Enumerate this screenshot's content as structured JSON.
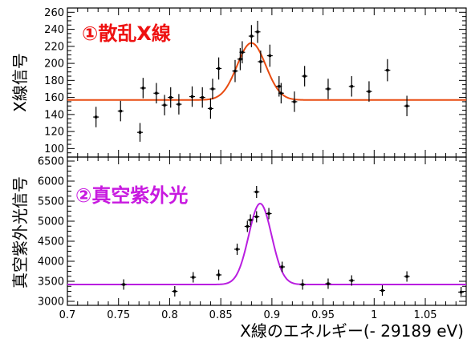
{
  "chart_data": [
    {
      "type": "scatter",
      "title": "①散乱X線",
      "title_color": "#ee1111",
      "xlabel": "",
      "ylabel": "X線信号",
      "xlim": [
        0.7,
        1.09
      ],
      "ylim": [
        90,
        265
      ],
      "yticks": [
        100,
        120,
        140,
        160,
        180,
        200,
        220,
        240,
        260
      ],
      "fit_color": "#e84b10",
      "fit": {
        "baseline": 157,
        "amplitude": 67,
        "center": 0.88,
        "sigma": 0.014
      },
      "points": [
        {
          "x": 0.728,
          "y": 137,
          "yerr": 12
        },
        {
          "x": 0.752,
          "y": 144,
          "yerr": 12
        },
        {
          "x": 0.771,
          "y": 119,
          "yerr": 11
        },
        {
          "x": 0.774,
          "y": 171,
          "yerr": 12
        },
        {
          "x": 0.787,
          "y": 165,
          "yerr": 12
        },
        {
          "x": 0.795,
          "y": 151,
          "yerr": 12
        },
        {
          "x": 0.801,
          "y": 160,
          "yerr": 12
        },
        {
          "x": 0.809,
          "y": 152,
          "yerr": 12
        },
        {
          "x": 0.822,
          "y": 161,
          "yerr": 12
        },
        {
          "x": 0.832,
          "y": 160,
          "yerr": 12
        },
        {
          "x": 0.84,
          "y": 147,
          "yerr": 12
        },
        {
          "x": 0.842,
          "y": 170,
          "yerr": 12
        },
        {
          "x": 0.848,
          "y": 194,
          "yerr": 13
        },
        {
          "x": 0.864,
          "y": 191,
          "yerr": 13
        },
        {
          "x": 0.869,
          "y": 205,
          "yerr": 13
        },
        {
          "x": 0.871,
          "y": 213,
          "yerr": 13
        },
        {
          "x": 0.88,
          "y": 232,
          "yerr": 13
        },
        {
          "x": 0.886,
          "y": 237,
          "yerr": 13
        },
        {
          "x": 0.889,
          "y": 202,
          "yerr": 13
        },
        {
          "x": 0.898,
          "y": 209,
          "yerr": 13
        },
        {
          "x": 0.907,
          "y": 173,
          "yerr": 12
        },
        {
          "x": 0.909,
          "y": 165,
          "yerr": 12
        },
        {
          "x": 0.922,
          "y": 155,
          "yerr": 12
        },
        {
          "x": 0.932,
          "y": 185,
          "yerr": 12
        },
        {
          "x": 0.955,
          "y": 170,
          "yerr": 12
        },
        {
          "x": 0.978,
          "y": 173,
          "yerr": 12
        },
        {
          "x": 0.995,
          "y": 167,
          "yerr": 12
        },
        {
          "x": 1.013,
          "y": 192,
          "yerr": 13
        },
        {
          "x": 1.032,
          "y": 150,
          "yerr": 12
        }
      ]
    },
    {
      "type": "scatter",
      "title": "②真空紫外光",
      "title_color": "#c81ae0",
      "xlabel": "X線のエネルギー(- 29189 eV)",
      "ylabel": "真空紫外光信号",
      "xlim": [
        0.7,
        1.09
      ],
      "ylim": [
        2900,
        6600
      ],
      "yticks": [
        3000,
        3500,
        4000,
        4500,
        5000,
        5500,
        6000,
        6500
      ],
      "xticks": [
        0.7,
        0.75,
        0.8,
        0.85,
        0.9,
        0.95,
        1,
        1.05
      ],
      "xtick_labels": [
        "0.7",
        "0.75",
        "0.8",
        "0.85",
        "0.9",
        "0.95",
        "1",
        "1.05"
      ],
      "fit_color": "#b91ee0",
      "fit": {
        "baseline": 3420,
        "amplitude": 2020,
        "center": 0.8885,
        "sigma": 0.0112
      },
      "points": [
        {
          "x": 0.755,
          "y": 3420,
          "yerr": 130
        },
        {
          "x": 0.805,
          "y": 3250,
          "yerr": 130
        },
        {
          "x": 0.823,
          "y": 3600,
          "yerr": 130
        },
        {
          "x": 0.848,
          "y": 3660,
          "yerr": 130
        },
        {
          "x": 0.866,
          "y": 4300,
          "yerr": 140
        },
        {
          "x": 0.876,
          "y": 4870,
          "yerr": 140
        },
        {
          "x": 0.879,
          "y": 5030,
          "yerr": 140
        },
        {
          "x": 0.885,
          "y": 5110,
          "yerr": 140
        },
        {
          "x": 0.885,
          "y": 5730,
          "yerr": 150
        },
        {
          "x": 0.897,
          "y": 5190,
          "yerr": 140
        },
        {
          "x": 0.91,
          "y": 3860,
          "yerr": 130
        },
        {
          "x": 0.93,
          "y": 3420,
          "yerr": 130
        },
        {
          "x": 0.955,
          "y": 3440,
          "yerr": 130
        },
        {
          "x": 0.978,
          "y": 3520,
          "yerr": 130
        },
        {
          "x": 1.008,
          "y": 3270,
          "yerr": 130
        },
        {
          "x": 1.032,
          "y": 3620,
          "yerr": 130
        },
        {
          "x": 1.085,
          "y": 3230,
          "yerr": 130
        }
      ]
    }
  ]
}
